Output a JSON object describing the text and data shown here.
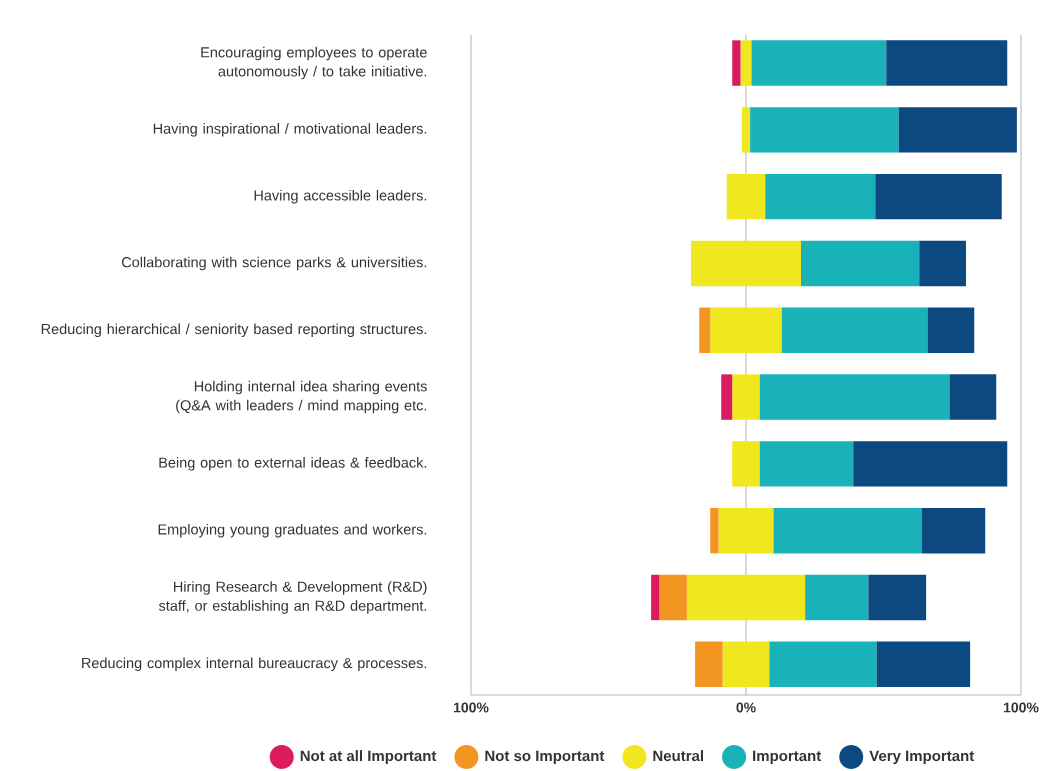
{
  "chart_data": {
    "type": "bar",
    "orientation": "horizontal",
    "stacked": true,
    "categories": [
      "Encouraging employees to operate autonomously / to take initiative.",
      "Having inspirational / motivational leaders.",
      "Having accessible leaders.",
      "Collaborating with science parks & universities.",
      "Reducing hierarchical / seniority based reporting structures.",
      "Holding internal idea sharing events (Q&A with leaders / mind mapping etc.",
      "Being open to external ideas & feedback.",
      "Employing young graduates and workers.",
      "Hiring Research & Development (R&D) staff, or establishing an R&D department.",
      "Reducing complex internal bureaucracy & processes."
    ],
    "series": [
      {
        "color": "#f0e71e",
        "values": [
          -2,
          -1.5,
          -7,
          -20,
          -13,
          -5,
          -5,
          -10,
          -21.5,
          -8.5
        ]
      },
      {
        "name": "Not so Important",
        "color": "#f39521",
        "values": [
          null,
          null,
          null,
          null,
          -4,
          null,
          null,
          -3,
          -10,
          -10
        ]
      },
      {
        "name": "Not at all Important",
        "color": "#dc1a5e",
        "values": [
          -3,
          null,
          null,
          null,
          null,
          -4,
          null,
          null,
          -3,
          null
        ]
      },
      {
        "name": "Neutral",
        "color": "#f0e71e",
        "values": [
          2,
          1.5,
          7,
          20,
          13,
          5,
          5,
          10,
          21.5,
          8.5
        ]
      },
      {
        "name": "Important",
        "color": "#19b2b8",
        "values": [
          49,
          54,
          40,
          43,
          53,
          69,
          34,
          54,
          23,
          39
        ]
      },
      {
        "name": "Very Important",
        "color": "#0c4980",
        "values": [
          44,
          43,
          46,
          17,
          17,
          17,
          56,
          23,
          21,
          34
        ]
      }
    ],
    "xlim": [
      -100,
      100
    ],
    "xticks": [
      {
        "value": -100,
        "label": "100%"
      },
      {
        "value": 0,
        "label": "0%"
      },
      {
        "value": 100,
        "label": "100%"
      }
    ],
    "grid": "x",
    "legend": "bottom"
  }
}
